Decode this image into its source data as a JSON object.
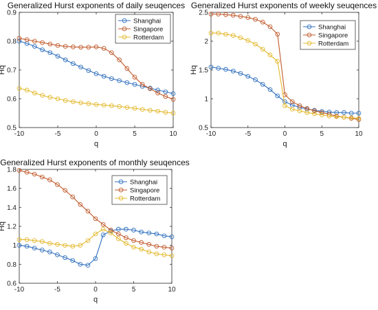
{
  "colors": {
    "Shanghai": "#2f6fbd",
    "Singapore": "#c0592a",
    "Rotterdam": "#e3b82c"
  },
  "chart_data": [
    {
      "type": "line",
      "title": "Generalized Hurst exponents of daily seuqences",
      "xlabel": "q",
      "ylabel": "Hq",
      "xlim": [
        -10,
        10
      ],
      "ylim": [
        0.5,
        0.9
      ],
      "xticks": [
        -10,
        -5,
        0,
        5,
        10
      ],
      "yticks": [
        0.5,
        0.6,
        0.7,
        0.8,
        0.9
      ],
      "legend_position": "top-right",
      "x": [
        -10,
        -9,
        -8,
        -7,
        -6,
        -5,
        -4,
        -3,
        -2,
        -1,
        0,
        1,
        2,
        3,
        4,
        5,
        6,
        7,
        8,
        9,
        10
      ],
      "series": [
        {
          "name": "Shanghai",
          "values": [
            0.8,
            0.792,
            0.782,
            0.77,
            0.76,
            0.748,
            0.735,
            0.722,
            0.71,
            0.698,
            0.687,
            0.678,
            0.67,
            0.663,
            0.656,
            0.65,
            0.643,
            0.637,
            0.63,
            0.624,
            0.618
          ]
        },
        {
          "name": "Singapore",
          "values": [
            0.81,
            0.805,
            0.8,
            0.795,
            0.79,
            0.785,
            0.782,
            0.78,
            0.779,
            0.779,
            0.78,
            0.775,
            0.76,
            0.735,
            0.705,
            0.675,
            0.65,
            0.635,
            0.62,
            0.608,
            0.598
          ]
        },
        {
          "name": "Rotterdam",
          "values": [
            0.636,
            0.63,
            0.62,
            0.612,
            0.605,
            0.6,
            0.594,
            0.59,
            0.586,
            0.583,
            0.58,
            0.578,
            0.576,
            0.573,
            0.57,
            0.567,
            0.563,
            0.56,
            0.557,
            0.553,
            0.55
          ]
        }
      ]
    },
    {
      "type": "line",
      "title": "Generalized Hurst exponents of weekly seuqences",
      "xlabel": "q",
      "ylabel": "Hq",
      "xlim": [
        -10,
        10
      ],
      "ylim": [
        0.5,
        2.5
      ],
      "xticks": [
        -10,
        -5,
        0,
        5,
        10
      ],
      "yticks": [
        0.5,
        1,
        1.5,
        2,
        2.5
      ],
      "legend_position": "top-right",
      "x": [
        -10,
        -9,
        -8,
        -7,
        -6,
        -5,
        -4,
        -3,
        -2,
        -1,
        0,
        1,
        2,
        3,
        4,
        5,
        6,
        7,
        8,
        9,
        10
      ],
      "series": [
        {
          "name": "Shanghai",
          "values": [
            1.55,
            1.53,
            1.51,
            1.48,
            1.44,
            1.39,
            1.33,
            1.25,
            1.16,
            1.05,
            0.95,
            0.89,
            0.85,
            0.82,
            0.8,
            0.78,
            0.77,
            0.76,
            0.76,
            0.75,
            0.75
          ]
        },
        {
          "name": "Singapore",
          "values": [
            2.47,
            2.47,
            2.46,
            2.45,
            2.43,
            2.41,
            2.38,
            2.33,
            2.25,
            2.12,
            1.07,
            0.95,
            0.88,
            0.83,
            0.79,
            0.76,
            0.73,
            0.7,
            0.68,
            0.66,
            0.64
          ]
        },
        {
          "name": "Rotterdam",
          "values": [
            2.14,
            2.14,
            2.12,
            2.1,
            2.06,
            2.01,
            1.95,
            1.86,
            1.76,
            1.65,
            0.88,
            0.82,
            0.79,
            0.76,
            0.74,
            0.72,
            0.7,
            0.69,
            0.68,
            0.67,
            0.66
          ]
        }
      ]
    },
    {
      "type": "line",
      "title": "Generalized Hurst exponents of monthly seuqences",
      "xlabel": "q",
      "ylabel": "Hq",
      "xlim": [
        -10,
        10
      ],
      "ylim": [
        0.6,
        1.8
      ],
      "xticks": [
        -10,
        -5,
        0,
        5,
        10
      ],
      "yticks": [
        0.6,
        0.8,
        1,
        1.2,
        1.4,
        1.6,
        1.8
      ],
      "legend_position": "top-right",
      "x": [
        -10,
        -9,
        -8,
        -7,
        -6,
        -5,
        -4,
        -3,
        -2,
        -1,
        0,
        1,
        2,
        3,
        4,
        5,
        6,
        7,
        8,
        9,
        10
      ],
      "series": [
        {
          "name": "Shanghai",
          "values": [
            1.0,
            0.99,
            0.97,
            0.95,
            0.93,
            0.9,
            0.87,
            0.84,
            0.8,
            0.79,
            0.86,
            1.11,
            1.15,
            1.17,
            1.17,
            1.16,
            1.14,
            1.13,
            1.12,
            1.1,
            1.09
          ]
        },
        {
          "name": "Singapore",
          "values": [
            1.79,
            1.77,
            1.75,
            1.72,
            1.69,
            1.64,
            1.58,
            1.51,
            1.43,
            1.36,
            1.28,
            1.22,
            1.16,
            1.12,
            1.08,
            1.05,
            1.03,
            1.01,
            0.99,
            0.98,
            0.97
          ]
        },
        {
          "name": "Rotterdam",
          "values": [
            1.06,
            1.06,
            1.05,
            1.04,
            1.02,
            1.01,
            1.0,
            0.99,
            1.0,
            1.05,
            1.12,
            1.17,
            1.13,
            1.07,
            1.02,
            0.98,
            0.96,
            0.93,
            0.91,
            0.9,
            0.89
          ]
        }
      ]
    }
  ]
}
